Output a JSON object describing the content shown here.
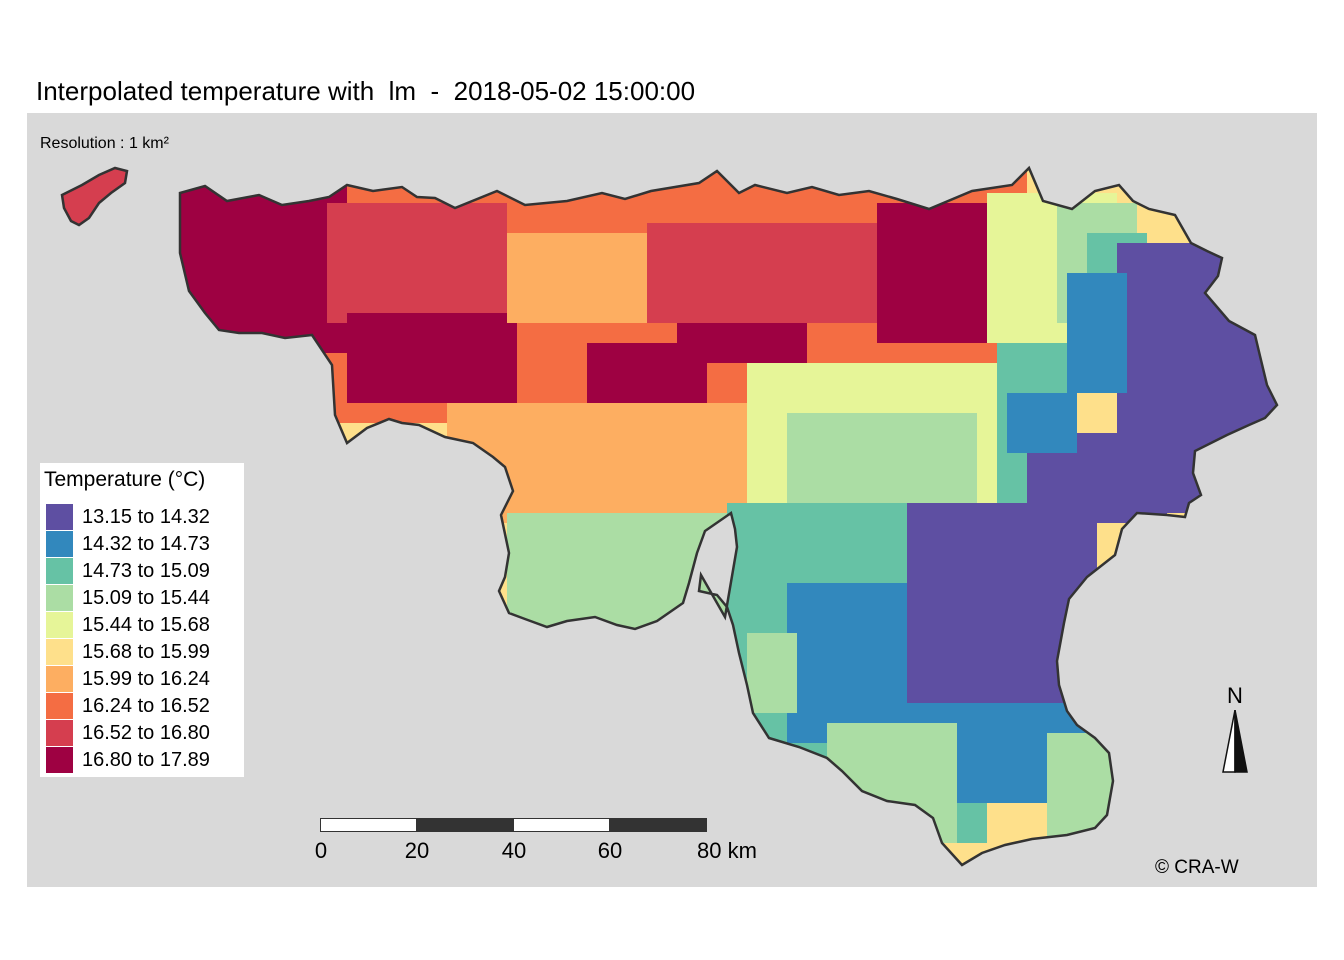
{
  "title": "Interpolated temperature with  lm  -  2018-05-02 15:00:00",
  "resolution_note": "Resolution : 1 km²",
  "legend": {
    "title": "Temperature (°C)",
    "classes": [
      {
        "label": "13.15 to 14.32",
        "color": "#5e4fa2"
      },
      {
        "label": "14.32 to 14.73",
        "color": "#3288bd"
      },
      {
        "label": "14.73 to 15.09",
        "color": "#66c2a5"
      },
      {
        "label": "15.09 to 15.44",
        "color": "#abdda4"
      },
      {
        "label": "15.44 to 15.68",
        "color": "#e6f598"
      },
      {
        "label": "15.68 to 15.99",
        "color": "#fee08b"
      },
      {
        "label": "15.99 to 16.24",
        "color": "#fdae61"
      },
      {
        "label": "16.24 to 16.52",
        "color": "#f46d43"
      },
      {
        "label": "16.52 to 16.80",
        "color": "#d53e4f"
      },
      {
        "label": "16.80 to 17.89",
        "color": "#9e0142"
      }
    ]
  },
  "scalebar": {
    "ticks": [
      "0",
      "20",
      "40",
      "60",
      "80 km"
    ]
  },
  "north_arrow": {
    "label": "N"
  },
  "copyright": "© CRA-W",
  "colors": {
    "panel_background": "#d9d9d9",
    "outline": "#333333"
  }
}
